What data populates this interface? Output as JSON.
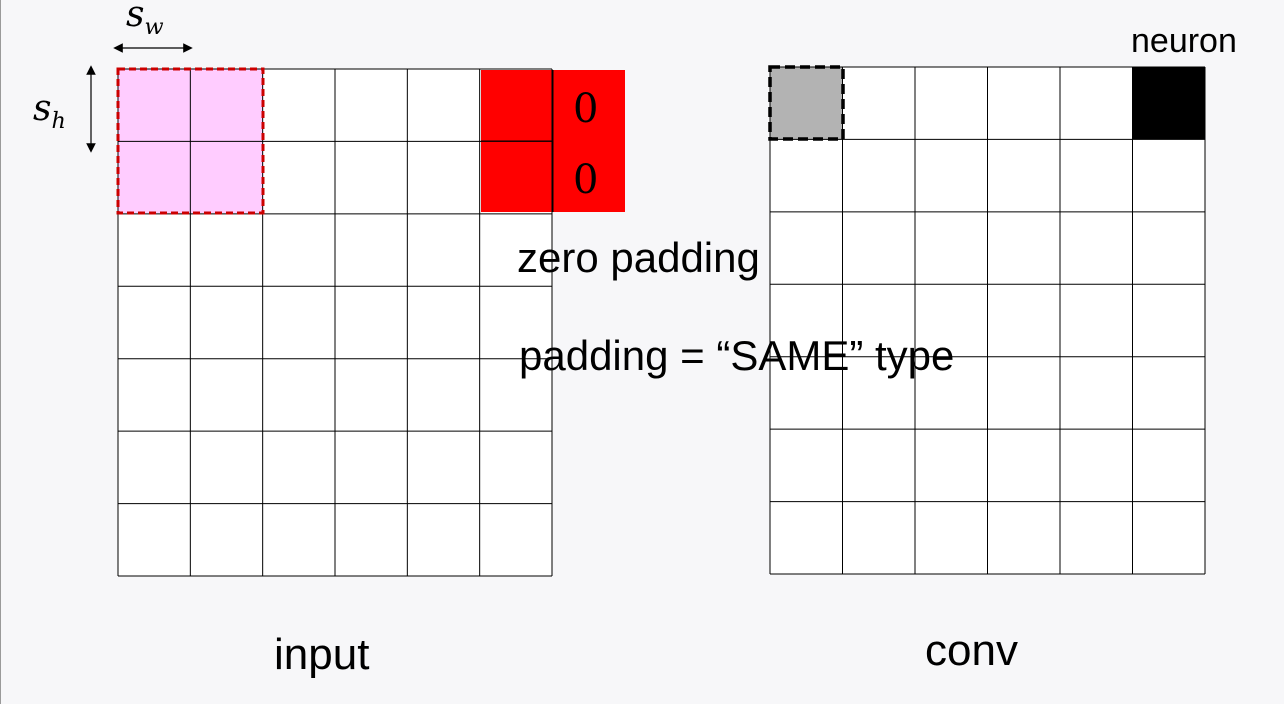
{
  "labels": {
    "stride_width": "s",
    "stride_width_sub": "w",
    "stride_height": "s",
    "stride_height_sub": "h",
    "zero_padding": "zero padding",
    "padding_type": "padding = “SAME” type",
    "input": "input",
    "conv": "conv",
    "neuron": "neuron",
    "pad_value_1": "0",
    "pad_value_2": "0"
  },
  "grids": {
    "input": {
      "rows": 7,
      "cols": 6
    },
    "conv": {
      "rows": 7,
      "cols": 6
    }
  },
  "colors": {
    "receptive_field_fill": "#ffccff",
    "receptive_field_border": "#cc0000",
    "padding_fill": "#ff0000",
    "conv_cell_fill": "#b3b3b3",
    "neuron_fill": "#000000",
    "grid_line": "#000000",
    "background": "#f7f7f9"
  }
}
